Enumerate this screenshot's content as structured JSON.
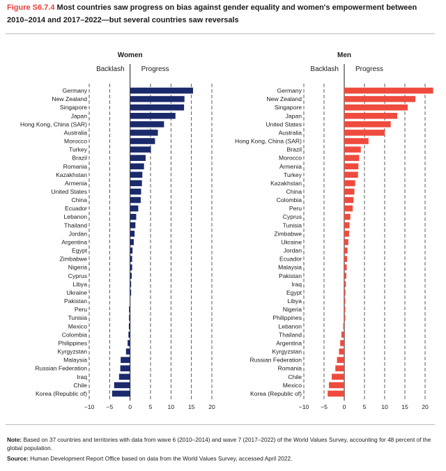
{
  "figure": {
    "label": "Figure S6.7.4",
    "title": "Most countries saw progress on bias against gender equality and women's empowerment between 2010–2014 and 2017–2022—but several countries saw reversals"
  },
  "notes": {
    "note_label": "Note:",
    "note_text": "Based on 37 countries and territories with data from wave 6 (2010–2014) and wave 7 (2017–2022) of the World Values Survey, accounting for 48 percent of the global population.",
    "source_label": "Source:",
    "source_text": "Human Development Report Office based on data from the World Values Survey, accessed April 2022."
  },
  "chart_data": [
    {
      "type": "bar",
      "orientation": "horizontal",
      "title": "Women",
      "color": "#1b2a6b",
      "backlash_label": "Backlash",
      "progress_label": "Progress",
      "xlim": [
        -10,
        20
      ],
      "xticks": [
        -10,
        -5,
        0,
        5,
        10,
        15,
        20
      ],
      "grid": "dashed vertical",
      "categories": [
        "Germany",
        "New Zealand",
        "Singapore",
        "Japan",
        "Hong Kong, China (SAR)",
        "Australia",
        "Morocco",
        "Turkey",
        "Brazil",
        "Romania",
        "Kazakhstan",
        "Armenia",
        "United States",
        "China",
        "Ecuador",
        "Lebanon",
        "Thailand",
        "Jordan",
        "Argentina",
        "Egypt",
        "Zimbabwe",
        "Nigeria",
        "Cyprus",
        "Libya",
        "Ukraine",
        "Pakistan",
        "Peru",
        "Tunisia",
        "Mexico",
        "Colombia",
        "Philippines",
        "Kyrgyzstan",
        "Malaysia",
        "Russian Federation",
        "Iraq",
        "Chile",
        "Korea (Republic of)"
      ],
      "values": [
        15.4,
        13.3,
        13.2,
        11.1,
        8.3,
        6.8,
        6.1,
        5.1,
        3.8,
        3.4,
        3.0,
        2.9,
        2.7,
        2.6,
        2.0,
        1.5,
        1.3,
        1.1,
        0.9,
        0.6,
        0.5,
        0.5,
        0.4,
        0.1,
        0.05,
        0.0,
        -0.05,
        -0.1,
        -0.3,
        -0.4,
        -0.6,
        -1.0,
        -2.3,
        -2.4,
        -2.7,
        -3.9,
        -4.4
      ]
    },
    {
      "type": "bar",
      "orientation": "horizontal",
      "title": "Men",
      "color": "#ee4b3e",
      "backlash_label": "Backlash",
      "progress_label": "Progress",
      "xlim": [
        -10,
        20
      ],
      "xticks": [
        -10,
        -5,
        0,
        5,
        10,
        15,
        20
      ],
      "grid": "dashed vertical",
      "categories": [
        "Germany",
        "New Zealand",
        "Singapore",
        "Japan",
        "United States",
        "Australia",
        "Hong Kong, China (SAR)",
        "Brazil",
        "Morocco",
        "Armenia",
        "Turkey",
        "Kazakhstan",
        "China",
        "Colombia",
        "Peru",
        "Cyprus",
        "Tunisia",
        "Zimbabwe",
        "Ukraine",
        "Jordan",
        "Ecuador",
        "Malaysia",
        "Pakistan",
        "Iraq",
        "Egypt",
        "Libya",
        "Nigeria",
        "Philippines",
        "Lebanon",
        "Thailand",
        "Argentina",
        "Kyrgyzstan",
        "Russian Federation",
        "Romania",
        "Chile",
        "Mexico",
        "Korea (Republic of)"
      ],
      "values": [
        22.0,
        17.6,
        15.7,
        13.1,
        11.5,
        10.0,
        6.0,
        4.1,
        3.7,
        3.5,
        3.4,
        2.7,
        2.5,
        2.3,
        2.1,
        1.5,
        1.3,
        1.2,
        1.0,
        0.8,
        0.7,
        0.6,
        0.5,
        0.4,
        0.3,
        0.2,
        0.1,
        0.05,
        -0.05,
        -0.7,
        -1.0,
        -1.3,
        -1.8,
        -2.2,
        -3.1,
        -3.8,
        -4.1
      ]
    }
  ]
}
